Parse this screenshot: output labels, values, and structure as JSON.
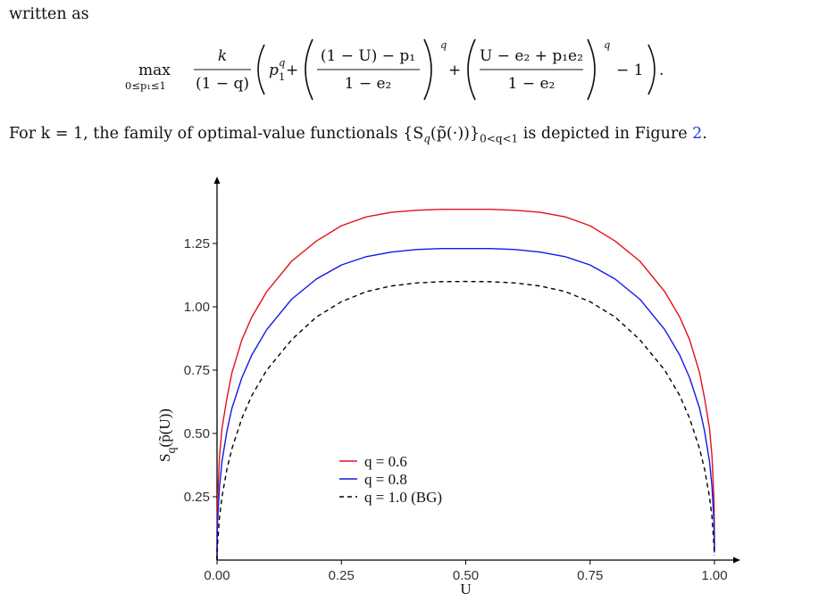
{
  "paper": {
    "intro_text": "written as",
    "sentence": {
      "before": "For k = 1, the family of optimal-value functionals {S",
      "sub_q": "q",
      "middle": "(p̃(·))}",
      "sub_range": "0<q<1",
      "after": " is depicted in Figure ",
      "figure_ref": "2",
      "end": "."
    },
    "equation": {
      "operator": "max",
      "operator_sub": "0≤p₁≤1",
      "prefactor_num": "k",
      "prefactor_den": "(1 − q)",
      "term1": "p",
      "term1_sup": "q",
      "term1_sub": "1",
      "frac1_num": "(1 − U) − p₁",
      "frac1_den": "1 − e₂",
      "frac2_num": "U − e₂ + p₁e₂",
      "frac2_den": "1 − e₂",
      "exponent": "q",
      "plus": "+",
      "minus_one": "− 1",
      "end_punct": "."
    }
  },
  "chart_data": {
    "type": "line",
    "xlabel": "U",
    "ylabel_main": "S",
    "ylabel_sub": "q",
    "ylabel_rest": "(p̃(U))",
    "xlim": [
      0,
      1
    ],
    "ylim": [
      0,
      1.38
    ],
    "x_ticks": [
      0.0,
      0.25,
      0.5,
      0.75,
      1.0
    ],
    "x_tick_labels": [
      "0.00",
      "0.25",
      "0.50",
      "0.75",
      "1.00"
    ],
    "y_ticks": [
      0.25,
      0.5,
      0.75,
      1.0,
      1.25
    ],
    "y_tick_labels": [
      "0.25",
      "0.50",
      "0.75",
      "1.00",
      "1.25"
    ],
    "grid": false,
    "legend_position": "bottom-center",
    "x": [
      0.0,
      0.0001,
      0.001,
      0.005,
      0.01,
      0.02,
      0.03,
      0.05,
      0.07,
      0.1,
      0.15,
      0.2,
      0.25,
      0.3,
      0.35,
      0.4,
      0.45,
      0.5,
      0.55,
      0.6,
      0.65,
      0.7,
      0.75,
      0.8,
      0.85,
      0.9,
      0.93,
      0.95,
      0.97,
      0.98,
      0.99,
      0.995,
      0.999,
      0.9999,
      1.0
    ],
    "series": [
      {
        "name": "q = 0.6",
        "color": "#e3101b",
        "dash": "solid",
        "values": [
          0.0,
          0.1,
          0.24,
          0.41,
          0.52,
          0.64,
          0.74,
          0.87,
          0.96,
          1.06,
          1.18,
          1.26,
          1.32,
          1.355,
          1.373,
          1.381,
          1.385,
          1.385,
          1.385,
          1.381,
          1.373,
          1.355,
          1.32,
          1.26,
          1.18,
          1.06,
          0.96,
          0.87,
          0.74,
          0.64,
          0.52,
          0.41,
          0.24,
          0.1,
          0.05
        ]
      },
      {
        "name": "q = 0.8",
        "color": "#1218e6",
        "dash": "solid",
        "values": [
          0.0,
          0.05,
          0.15,
          0.29,
          0.39,
          0.51,
          0.6,
          0.72,
          0.81,
          0.91,
          1.03,
          1.11,
          1.165,
          1.198,
          1.216,
          1.226,
          1.23,
          1.23,
          1.23,
          1.226,
          1.216,
          1.198,
          1.165,
          1.11,
          1.03,
          0.91,
          0.81,
          0.72,
          0.6,
          0.51,
          0.39,
          0.29,
          0.15,
          0.05,
          0.03
        ]
      },
      {
        "name": "q = 1.0 (BG)",
        "color": "#000000",
        "dash": "dashed",
        "values": [
          0.0,
          0.02,
          0.06,
          0.17,
          0.25,
          0.36,
          0.44,
          0.56,
          0.65,
          0.75,
          0.87,
          0.96,
          1.02,
          1.06,
          1.082,
          1.094,
          1.099,
          1.1,
          1.099,
          1.094,
          1.082,
          1.06,
          1.02,
          0.96,
          0.87,
          0.75,
          0.65,
          0.56,
          0.44,
          0.36,
          0.25,
          0.17,
          0.06,
          0.02,
          0.02
        ]
      }
    ]
  }
}
